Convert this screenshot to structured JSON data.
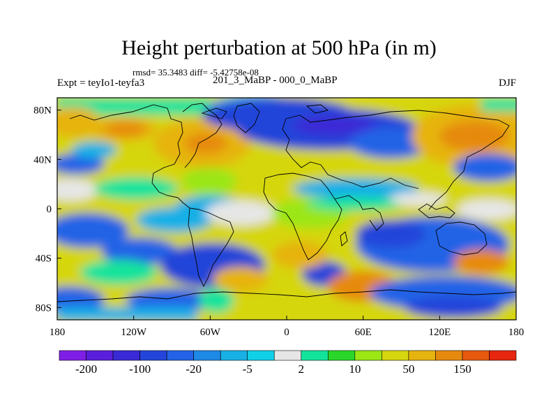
{
  "title": "Height perturbation at 500 hPa (in m)",
  "stats": "rmsd= 35.3483 diff= -5.42758e-08",
  "experiment": "Expt = teyIo1-teyfa3",
  "period": "201_3_MaBP - 000_0_MaBP",
  "season": "DJF",
  "map": {
    "projection": "cylindrical-equidistant",
    "lon_range": [
      -180,
      180
    ],
    "lat_range": [
      -90,
      90
    ],
    "lon_ticks": [
      {
        "value": -180,
        "label": "180"
      },
      {
        "value": -120,
        "label": "120W"
      },
      {
        "value": -60,
        "label": "60W"
      },
      {
        "value": 0,
        "label": "0"
      },
      {
        "value": 60,
        "label": "60E"
      },
      {
        "value": 120,
        "label": "120E"
      },
      {
        "value": 180,
        "label": "180"
      }
    ],
    "lat_ticks": [
      {
        "value": 80,
        "label": "80N"
      },
      {
        "value": 40,
        "label": "40N"
      },
      {
        "value": 0,
        "label": "0"
      },
      {
        "value": -40,
        "label": "40S"
      },
      {
        "value": -80,
        "label": "80S"
      }
    ]
  },
  "colorbar": {
    "colors": [
      "#7f1fe6",
      "#5a1fdc",
      "#3a2ad6",
      "#2445d9",
      "#2463e6",
      "#1f89e6",
      "#19b0e6",
      "#10d0e8",
      "#e6e6e6",
      "#13e39b",
      "#2ad62a",
      "#9be614",
      "#d6d60f",
      "#e6b40f",
      "#e68a0f",
      "#e6590f",
      "#e6260f"
    ],
    "labels": [
      "-200",
      "-100",
      "-20",
      "-5",
      "2",
      "10",
      "50",
      "150"
    ]
  }
}
